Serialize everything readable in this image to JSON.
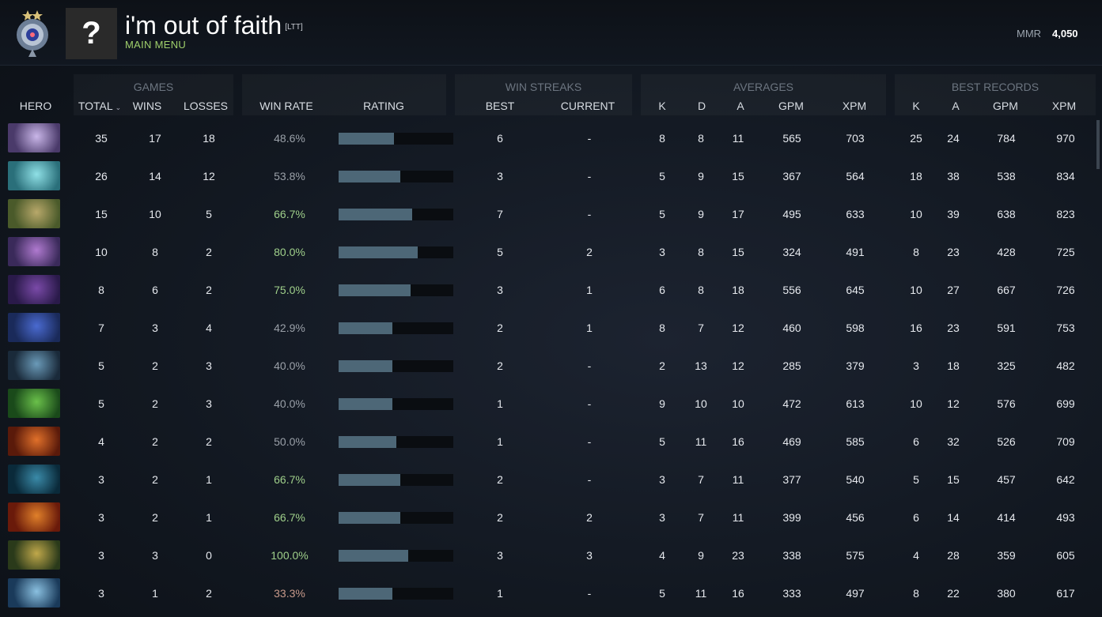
{
  "header": {
    "player_name": "i'm out of faith",
    "player_tag": "[LTT]",
    "menu_link": "MAIN MENU",
    "avatar_glyph": "?",
    "mmr_label": "MMR",
    "mmr_value": "4,050",
    "rank_icon": "rank-medal-icon"
  },
  "columns": {
    "hero": "HERO",
    "games_group": "GAMES",
    "total": "TOTAL",
    "wins": "WINS",
    "losses": "LOSSES",
    "win_rate": "WIN RATE",
    "rating": "RATING",
    "win_streaks_group": "WIN STREAKS",
    "best": "BEST",
    "current": "CURRENT",
    "averages_group": "AVERAGES",
    "avg_k": "K",
    "avg_d": "D",
    "avg_a": "A",
    "avg_gpm": "GPM",
    "avg_xpm": "XPM",
    "best_records_group": "BEST RECORDS",
    "best_k": "K",
    "best_a": "A",
    "best_gpm": "GPM",
    "best_xpm": "XPM"
  },
  "colors": {
    "accent_green": "#9fcf6b",
    "rating_bar": "#4d6777",
    "winrate_good": "#9fcf8a",
    "winrate_bad": "#c89a8a"
  },
  "rows": [
    {
      "total": "35",
      "wins": "17",
      "losses": "18",
      "win_rate": "48.6%",
      "rating": 0.48,
      "streak_best": "6",
      "streak_current": "-",
      "avg_k": "8",
      "avg_d": "8",
      "avg_a": "11",
      "avg_gpm": "565",
      "avg_xpm": "703",
      "best_k": "25",
      "best_a": "24",
      "best_gpm": "784",
      "best_xpm": "970",
      "portrait": [
        "#4a3a6a",
        "#c9b6e8"
      ]
    },
    {
      "total": "26",
      "wins": "14",
      "losses": "12",
      "win_rate": "53.8%",
      "rating": 0.54,
      "streak_best": "3",
      "streak_current": "-",
      "avg_k": "5",
      "avg_d": "9",
      "avg_a": "15",
      "avg_gpm": "367",
      "avg_xpm": "564",
      "best_k": "18",
      "best_a": "38",
      "best_gpm": "538",
      "best_xpm": "834",
      "portrait": [
        "#2a6f7a",
        "#8fe0e6"
      ]
    },
    {
      "total": "15",
      "wins": "10",
      "losses": "5",
      "win_rate": "66.7%",
      "rating": 0.64,
      "streak_best": "7",
      "streak_current": "-",
      "avg_k": "5",
      "avg_d": "9",
      "avg_a": "17",
      "avg_gpm": "495",
      "avg_xpm": "633",
      "best_k": "10",
      "best_a": "39",
      "best_gpm": "638",
      "best_xpm": "823",
      "portrait": [
        "#4a5a2a",
        "#b8a86a"
      ]
    },
    {
      "total": "10",
      "wins": "8",
      "losses": "2",
      "win_rate": "80.0%",
      "rating": 0.69,
      "streak_best": "5",
      "streak_current": "2",
      "avg_k": "3",
      "avg_d": "8",
      "avg_a": "15",
      "avg_gpm": "324",
      "avg_xpm": "491",
      "best_k": "8",
      "best_a": "23",
      "best_gpm": "428",
      "best_xpm": "725",
      "portrait": [
        "#3a2a5a",
        "#b07ad0"
      ]
    },
    {
      "total": "8",
      "wins": "6",
      "losses": "2",
      "win_rate": "75.0%",
      "rating": 0.63,
      "streak_best": "3",
      "streak_current": "1",
      "avg_k": "6",
      "avg_d": "8",
      "avg_a": "18",
      "avg_gpm": "556",
      "avg_xpm": "645",
      "best_k": "10",
      "best_a": "27",
      "best_gpm": "667",
      "best_xpm": "726",
      "portrait": [
        "#2a1a4a",
        "#7a4aa8"
      ]
    },
    {
      "total": "7",
      "wins": "3",
      "losses": "4",
      "win_rate": "42.9%",
      "rating": 0.47,
      "streak_best": "2",
      "streak_current": "1",
      "avg_k": "8",
      "avg_d": "7",
      "avg_a": "12",
      "avg_gpm": "460",
      "avg_xpm": "598",
      "best_k": "16",
      "best_a": "23",
      "best_gpm": "591",
      "best_xpm": "753",
      "portrait": [
        "#1a2a5a",
        "#4a6ad0"
      ]
    },
    {
      "total": "5",
      "wins": "2",
      "losses": "3",
      "win_rate": "40.0%",
      "rating": 0.47,
      "streak_best": "2",
      "streak_current": "-",
      "avg_k": "2",
      "avg_d": "13",
      "avg_a": "12",
      "avg_gpm": "285",
      "avg_xpm": "379",
      "best_k": "3",
      "best_a": "18",
      "best_gpm": "325",
      "best_xpm": "482",
      "portrait": [
        "#1a2a3a",
        "#6a9ab8"
      ]
    },
    {
      "total": "5",
      "wins": "2",
      "losses": "3",
      "win_rate": "40.0%",
      "rating": 0.47,
      "streak_best": "1",
      "streak_current": "-",
      "avg_k": "9",
      "avg_d": "10",
      "avg_a": "10",
      "avg_gpm": "472",
      "avg_xpm": "613",
      "best_k": "10",
      "best_a": "12",
      "best_gpm": "576",
      "best_xpm": "699",
      "portrait": [
        "#1a4a1a",
        "#6ac04a"
      ]
    },
    {
      "total": "4",
      "wins": "2",
      "losses": "2",
      "win_rate": "50.0%",
      "rating": 0.5,
      "streak_best": "1",
      "streak_current": "-",
      "avg_k": "5",
      "avg_d": "11",
      "avg_a": "16",
      "avg_gpm": "469",
      "avg_xpm": "585",
      "best_k": "6",
      "best_a": "32",
      "best_gpm": "526",
      "best_xpm": "709",
      "portrait": [
        "#5a1a0a",
        "#e0702a"
      ]
    },
    {
      "total": "3",
      "wins": "2",
      "losses": "1",
      "win_rate": "66.7%",
      "rating": 0.54,
      "streak_best": "2",
      "streak_current": "-",
      "avg_k": "3",
      "avg_d": "7",
      "avg_a": "11",
      "avg_gpm": "377",
      "avg_xpm": "540",
      "best_k": "5",
      "best_a": "15",
      "best_gpm": "457",
      "best_xpm": "642",
      "portrait": [
        "#0a2a3a",
        "#3a8aa8"
      ]
    },
    {
      "total": "3",
      "wins": "2",
      "losses": "1",
      "win_rate": "66.7%",
      "rating": 0.54,
      "streak_best": "2",
      "streak_current": "2",
      "avg_k": "3",
      "avg_d": "7",
      "avg_a": "11",
      "avg_gpm": "399",
      "avg_xpm": "456",
      "best_k": "6",
      "best_a": "14",
      "best_gpm": "414",
      "best_xpm": "493",
      "portrait": [
        "#6a1a0a",
        "#e0802a"
      ]
    },
    {
      "total": "3",
      "wins": "3",
      "losses": "0",
      "win_rate": "100.0%",
      "rating": 0.61,
      "streak_best": "3",
      "streak_current": "3",
      "avg_k": "4",
      "avg_d": "9",
      "avg_a": "23",
      "avg_gpm": "338",
      "avg_xpm": "575",
      "best_k": "4",
      "best_a": "28",
      "best_gpm": "359",
      "best_xpm": "605",
      "portrait": [
        "#2a3a1a",
        "#c0a84a"
      ]
    },
    {
      "total": "3",
      "wins": "1",
      "losses": "2",
      "win_rate": "33.3%",
      "rating": 0.47,
      "streak_best": "1",
      "streak_current": "-",
      "avg_k": "5",
      "avg_d": "11",
      "avg_a": "16",
      "avg_gpm": "333",
      "avg_xpm": "497",
      "best_k": "8",
      "best_a": "22",
      "best_gpm": "380",
      "best_xpm": "617",
      "portrait": [
        "#1a3a5a",
        "#8ac0e0"
      ]
    }
  ]
}
